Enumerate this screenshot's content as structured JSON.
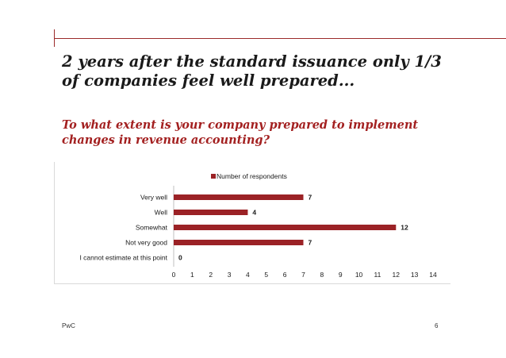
{
  "slide": {
    "title_line1": "2 years after the standard issuance only 1/3",
    "title_line2": "of companies feel well prepared...",
    "subtitle_line1": "To what extent is your company prepared to implement",
    "subtitle_line2": "changes in revenue accounting?",
    "footer": "PwC",
    "page_number": "6",
    "accent_color": "#a32020"
  },
  "chart_data": {
    "type": "bar",
    "orientation": "horizontal",
    "categories": [
      "Very well",
      "Well",
      "Somewhat",
      "Not very good",
      "I cannot estimate at this point"
    ],
    "series": [
      {
        "name": "Number of respondents",
        "values": [
          7,
          4,
          12,
          7,
          0
        ],
        "color": "#9b2226"
      }
    ],
    "xlim": [
      0,
      14
    ],
    "xticks": [
      0,
      1,
      2,
      3,
      4,
      5,
      6,
      7,
      8,
      9,
      10,
      11,
      12,
      13,
      14
    ],
    "data_labels": true,
    "grid": false,
    "legend_position": "top"
  }
}
